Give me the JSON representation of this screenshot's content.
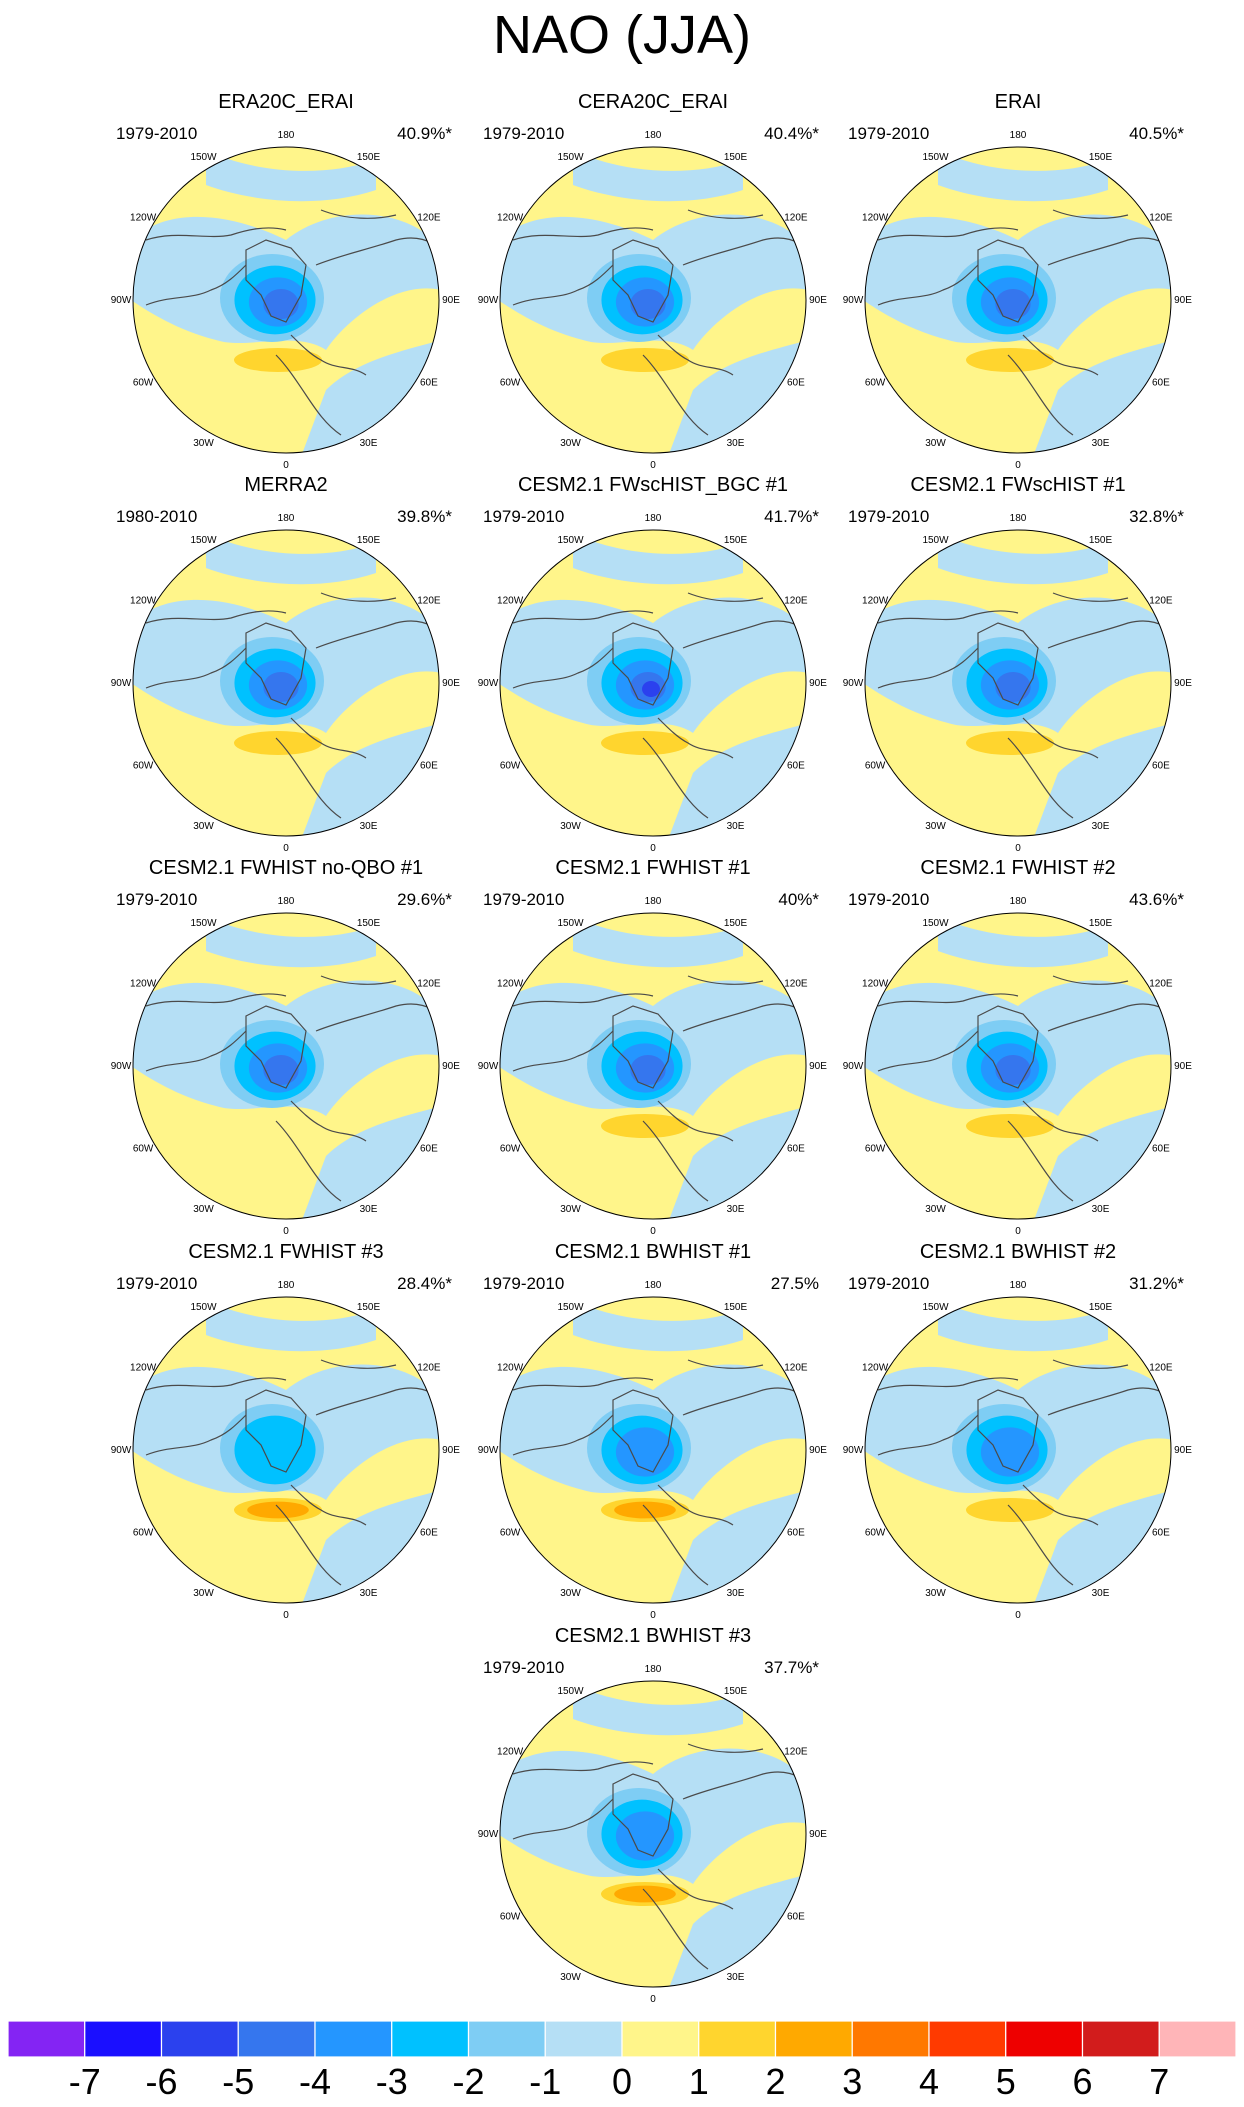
{
  "figure": {
    "title": "NAO (JJA)"
  },
  "colors": {
    "scale": [
      "#8424f3",
      "#1a0fff",
      "#2b41ee",
      "#3576ee",
      "#2496ff",
      "#00c1ff",
      "#7ecdf4",
      "#b5dff5",
      "#fff58a",
      "#ffd52e",
      "#ffa900",
      "#ff7800",
      "#ff3a00",
      "#ee0000",
      "#d21c1c",
      "#ffb5b8"
    ],
    "coast": "#4a4a4a"
  },
  "chart_data": {
    "type": "polar_map_grid",
    "projection": "North polar stereographic",
    "field": "NAO regression pattern (JJA)",
    "longitude_labels": [
      "180",
      "150E",
      "120E",
      "90E",
      "60E",
      "30E",
      "0",
      "30W",
      "60W",
      "90W",
      "120W",
      "150W"
    ],
    "colorbar": {
      "ticks": [
        "-7",
        "-6",
        "-5",
        "-4",
        "-3",
        "-2",
        "-1",
        "0",
        "1",
        "2",
        "3",
        "4",
        "5",
        "6",
        "7"
      ],
      "levels": [
        -7,
        -6,
        -5,
        -4,
        -3,
        -2,
        -1,
        0,
        1,
        2,
        3,
        4,
        5,
        6,
        7
      ]
    },
    "panels": [
      {
        "title": "ERA20C_ERAI",
        "period": "1979-2010",
        "explained_variance": "40.9%*",
        "variance_pct": 40.9,
        "significant": true,
        "min": -4,
        "max": 2
      },
      {
        "title": "CERA20C_ERAI",
        "period": "1979-2010",
        "explained_variance": "40.4%*",
        "variance_pct": 40.4,
        "significant": true,
        "min": -4,
        "max": 2
      },
      {
        "title": "ERAI",
        "period": "1979-2010",
        "explained_variance": "40.5%*",
        "variance_pct": 40.5,
        "significant": true,
        "min": -4,
        "max": 2
      },
      {
        "title": "MERRA2",
        "period": "1980-2010",
        "explained_variance": "39.8%*",
        "variance_pct": 39.8,
        "significant": true,
        "min": -4,
        "max": 2
      },
      {
        "title": "CESM2.1 FWscHIST_BGC #1",
        "period": "1979-2010",
        "explained_variance": "41.7%*",
        "variance_pct": 41.7,
        "significant": true,
        "min": -5,
        "max": 2
      },
      {
        "title": "CESM2.1 FWscHIST #1",
        "period": "1979-2010",
        "explained_variance": "32.8%*",
        "variance_pct": 32.8,
        "significant": true,
        "min": -4,
        "max": 2
      },
      {
        "title": "CESM2.1 FWHIST no-QBO #1",
        "period": "1979-2010",
        "explained_variance": "29.6%*",
        "variance_pct": 29.6,
        "significant": true,
        "min": -4,
        "max": 1
      },
      {
        "title": "CESM2.1 FWHIST #1",
        "period": "1979-2010",
        "explained_variance": "40%*",
        "variance_pct": 40.0,
        "significant": true,
        "min": -4,
        "max": 2
      },
      {
        "title": "CESM2.1 FWHIST #2",
        "period": "1979-2010",
        "explained_variance": "43.6%*",
        "variance_pct": 43.6,
        "significant": true,
        "min": -4,
        "max": 2
      },
      {
        "title": "CESM2.1 FWHIST #3",
        "period": "1979-2010",
        "explained_variance": "28.4%*",
        "variance_pct": 28.4,
        "significant": true,
        "min": -2,
        "max": 3
      },
      {
        "title": "CESM2.1 BWHIST #1",
        "period": "1979-2010",
        "explained_variance": "27.5%",
        "variance_pct": 27.5,
        "significant": false,
        "min": -3,
        "max": 3
      },
      {
        "title": "CESM2.1 BWHIST #2",
        "period": "1979-2010",
        "explained_variance": "31.2%*",
        "variance_pct": 31.2,
        "significant": true,
        "min": -3,
        "max": 2
      },
      {
        "title": "CESM2.1 BWHIST #3",
        "period": "1979-2010",
        "explained_variance": "37.7%*",
        "variance_pct": 37.7,
        "significant": true,
        "min": -3,
        "max": 3
      }
    ]
  }
}
